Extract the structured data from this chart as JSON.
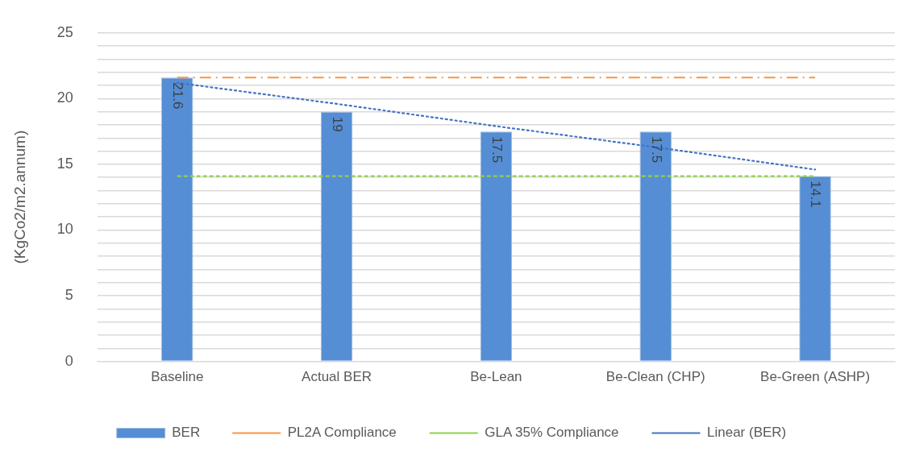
{
  "chart_data": {
    "type": "bar",
    "ylabel": "(KgCo2/m2.annum)",
    "categories": [
      "Baseline",
      "Actual BER",
      "Be-Lean",
      "Be-Clean (CHP)",
      "Be-Green (ASHP)"
    ],
    "series": [
      {
        "name": "BER",
        "color": "#558ed5",
        "values": [
          21.6,
          19,
          17.5,
          17.5,
          14.1
        ],
        "value_labels": [
          "21.6",
          "19",
          "17.5",
          "17.5",
          "14.1"
        ]
      },
      {
        "name": "PL2A Compliance",
        "type": "line",
        "color": "#f79646",
        "line_style": "dashdot",
        "values": [
          21.6,
          21.6,
          21.6,
          21.6,
          21.6
        ]
      },
      {
        "name": "GLA 35% Compliance",
        "type": "line",
        "color": "#92d050",
        "line_style": "dashed",
        "values": [
          14.1,
          14.1,
          14.1,
          14.1,
          14.1
        ]
      },
      {
        "name": "Linear (BER)",
        "type": "line",
        "color": "#4472c4",
        "line_style": "dotted",
        "values": [
          21.2,
          19.6,
          17.9,
          16.3,
          14.6
        ]
      }
    ],
    "ylim": [
      0,
      25
    ],
    "yticks": [
      0,
      {
        "value": 1,
        "label": null
      },
      {
        "value": 2,
        "label": null
      },
      {
        "value": 3,
        "label": null
      },
      {
        "value": 4,
        "label": null
      },
      5,
      {
        "value": 6,
        "label": null
      },
      {
        "value": 7,
        "label": null
      },
      {
        "value": 8,
        "label": null
      },
      {
        "value": 9,
        "label": null
      },
      10,
      {
        "value": 11,
        "label": null
      },
      {
        "value": 12,
        "label": null
      },
      {
        "value": 13,
        "label": null
      },
      {
        "value": 14,
        "label": null
      },
      15,
      {
        "value": 16,
        "label": null
      },
      {
        "value": 17,
        "label": null
      },
      {
        "value": 18,
        "label": null
      },
      {
        "value": 19,
        "label": null
      },
      20,
      {
        "value": 21,
        "label": null
      },
      {
        "value": 22,
        "label": null
      },
      {
        "value": 23,
        "label": null
      },
      {
        "value": 24,
        "label": null
      },
      25
    ],
    "grid": "y",
    "legend": "bottom",
    "marker": "none"
  }
}
